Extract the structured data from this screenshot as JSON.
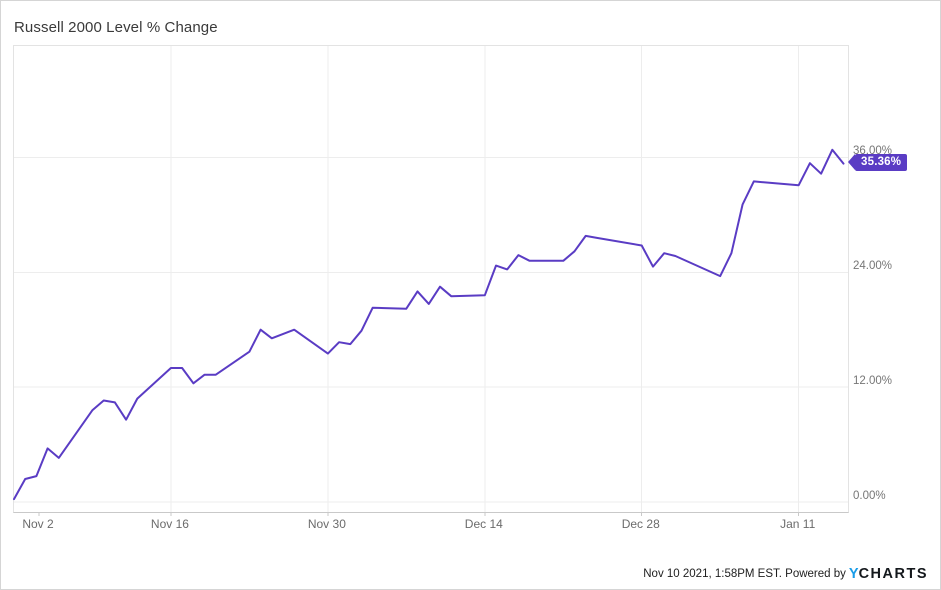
{
  "header": {
    "title": "Russell 2000 Level % Change"
  },
  "badge": {
    "label": "35.36%"
  },
  "footer": {
    "timestamp": "Nov 10 2021, 1:58PM EST. Powered by",
    "logo_y": "Y",
    "logo_charts": "CHARTS"
  },
  "colors": {
    "line": "#5a3cc4",
    "badge_bg": "#5a3cc4",
    "grid": "#ededed",
    "plot_border": "#e3e3e3",
    "axis_text": "#767676",
    "title_text": "#3a3a3a",
    "logo_y_blue": "#189ce8",
    "logo_charts_dark": "#14181c"
  },
  "chart_data": {
    "type": "line",
    "title": "Russell 2000 Level % Change",
    "xlabel": "",
    "ylabel": "",
    "grid": true,
    "legend": "none",
    "last_value_label": "35.36%",
    "ylim": [
      -1.05,
      47.65
    ],
    "xlim_days": [
      0,
      74.4
    ],
    "y_ticks": [
      {
        "label": "36.00%",
        "value": 36
      },
      {
        "label": "24.00%",
        "value": 24
      },
      {
        "label": "12.00%",
        "value": 12
      },
      {
        "label": "0.00%",
        "value": 0
      }
    ],
    "x_ticks": [
      {
        "label": "Nov 2",
        "day": 0
      },
      {
        "label": "Nov 16",
        "day": 14
      },
      {
        "label": "Nov 30",
        "day": 28
      },
      {
        "label": "Dec 14",
        "day": 42
      },
      {
        "label": "Dec 28",
        "day": 56
      },
      {
        "label": "Jan 11",
        "day": 70
      }
    ],
    "series": [
      {
        "name": "Russell 2000 Level % Change",
        "points": [
          {
            "date": "Nov 2",
            "day": 0,
            "value": 0.3
          },
          {
            "date": "Nov 3",
            "day": 1,
            "value": 2.4
          },
          {
            "date": "Nov 4",
            "day": 2,
            "value": 2.7
          },
          {
            "date": "Nov 5",
            "day": 3,
            "value": 5.6
          },
          {
            "date": "Nov 6",
            "day": 4,
            "value": 4.6
          },
          {
            "date": "Nov 9",
            "day": 7,
            "value": 9.6
          },
          {
            "date": "Nov 10",
            "day": 8,
            "value": 10.6
          },
          {
            "date": "Nov 11",
            "day": 9,
            "value": 10.4
          },
          {
            "date": "Nov 12",
            "day": 10,
            "value": 8.6
          },
          {
            "date": "Nov 13",
            "day": 11,
            "value": 10.8
          },
          {
            "date": "Nov 16",
            "day": 14,
            "value": 14.0
          },
          {
            "date": "Nov 17",
            "day": 15,
            "value": 14.0
          },
          {
            "date": "Nov 18",
            "day": 16,
            "value": 12.4
          },
          {
            "date": "Nov 19",
            "day": 17,
            "value": 13.3
          },
          {
            "date": "Nov 20",
            "day": 18,
            "value": 13.3
          },
          {
            "date": "Nov 23",
            "day": 21,
            "value": 15.7
          },
          {
            "date": "Nov 24",
            "day": 22,
            "value": 18.0
          },
          {
            "date": "Nov 25",
            "day": 23,
            "value": 17.1
          },
          {
            "date": "Nov 27",
            "day": 25,
            "value": 18.0
          },
          {
            "date": "Nov 30",
            "day": 28,
            "value": 15.5
          },
          {
            "date": "Dec 1",
            "day": 29,
            "value": 16.7
          },
          {
            "date": "Dec 2",
            "day": 30,
            "value": 16.5
          },
          {
            "date": "Dec 3",
            "day": 31,
            "value": 17.9
          },
          {
            "date": "Dec 4",
            "day": 32,
            "value": 20.3
          },
          {
            "date": "Dec 7",
            "day": 35,
            "value": 20.2
          },
          {
            "date": "Dec 8",
            "day": 36,
            "value": 22.0
          },
          {
            "date": "Dec 9",
            "day": 37,
            "value": 20.7
          },
          {
            "date": "Dec 10",
            "day": 38,
            "value": 22.5
          },
          {
            "date": "Dec 11",
            "day": 39,
            "value": 21.5
          },
          {
            "date": "Dec 14",
            "day": 42,
            "value": 21.6
          },
          {
            "date": "Dec 15",
            "day": 43,
            "value": 24.7
          },
          {
            "date": "Dec 16",
            "day": 44,
            "value": 24.3
          },
          {
            "date": "Dec 17",
            "day": 45,
            "value": 25.8
          },
          {
            "date": "Dec 18",
            "day": 46,
            "value": 25.2
          },
          {
            "date": "Dec 21",
            "day": 49,
            "value": 25.2
          },
          {
            "date": "Dec 22",
            "day": 50,
            "value": 26.2
          },
          {
            "date": "Dec 23",
            "day": 51,
            "value": 27.8
          },
          {
            "date": "Dec 24",
            "day": 52,
            "value": 27.6
          },
          {
            "date": "Dec 28",
            "day": 56,
            "value": 26.8
          },
          {
            "date": "Dec 29",
            "day": 57,
            "value": 24.6
          },
          {
            "date": "Dec 30",
            "day": 58,
            "value": 26.0
          },
          {
            "date": "Dec 31",
            "day": 59,
            "value": 25.7
          },
          {
            "date": "Jan 4",
            "day": 63,
            "value": 23.6
          },
          {
            "date": "Jan 5",
            "day": 64,
            "value": 26.0
          },
          {
            "date": "Jan 6",
            "day": 65,
            "value": 31.1
          },
          {
            "date": "Jan 7",
            "day": 66,
            "value": 33.5
          },
          {
            "date": "Jan 8",
            "day": 67,
            "value": 33.4
          },
          {
            "date": "Jan 11",
            "day": 70,
            "value": 33.1
          },
          {
            "date": "Jan 12",
            "day": 71,
            "value": 35.4
          },
          {
            "date": "Jan 13",
            "day": 72,
            "value": 34.3
          },
          {
            "date": "Jan 14",
            "day": 73,
            "value": 36.8
          },
          {
            "date": "Jan 15",
            "day": 74,
            "value": 35.36
          }
        ]
      }
    ]
  }
}
